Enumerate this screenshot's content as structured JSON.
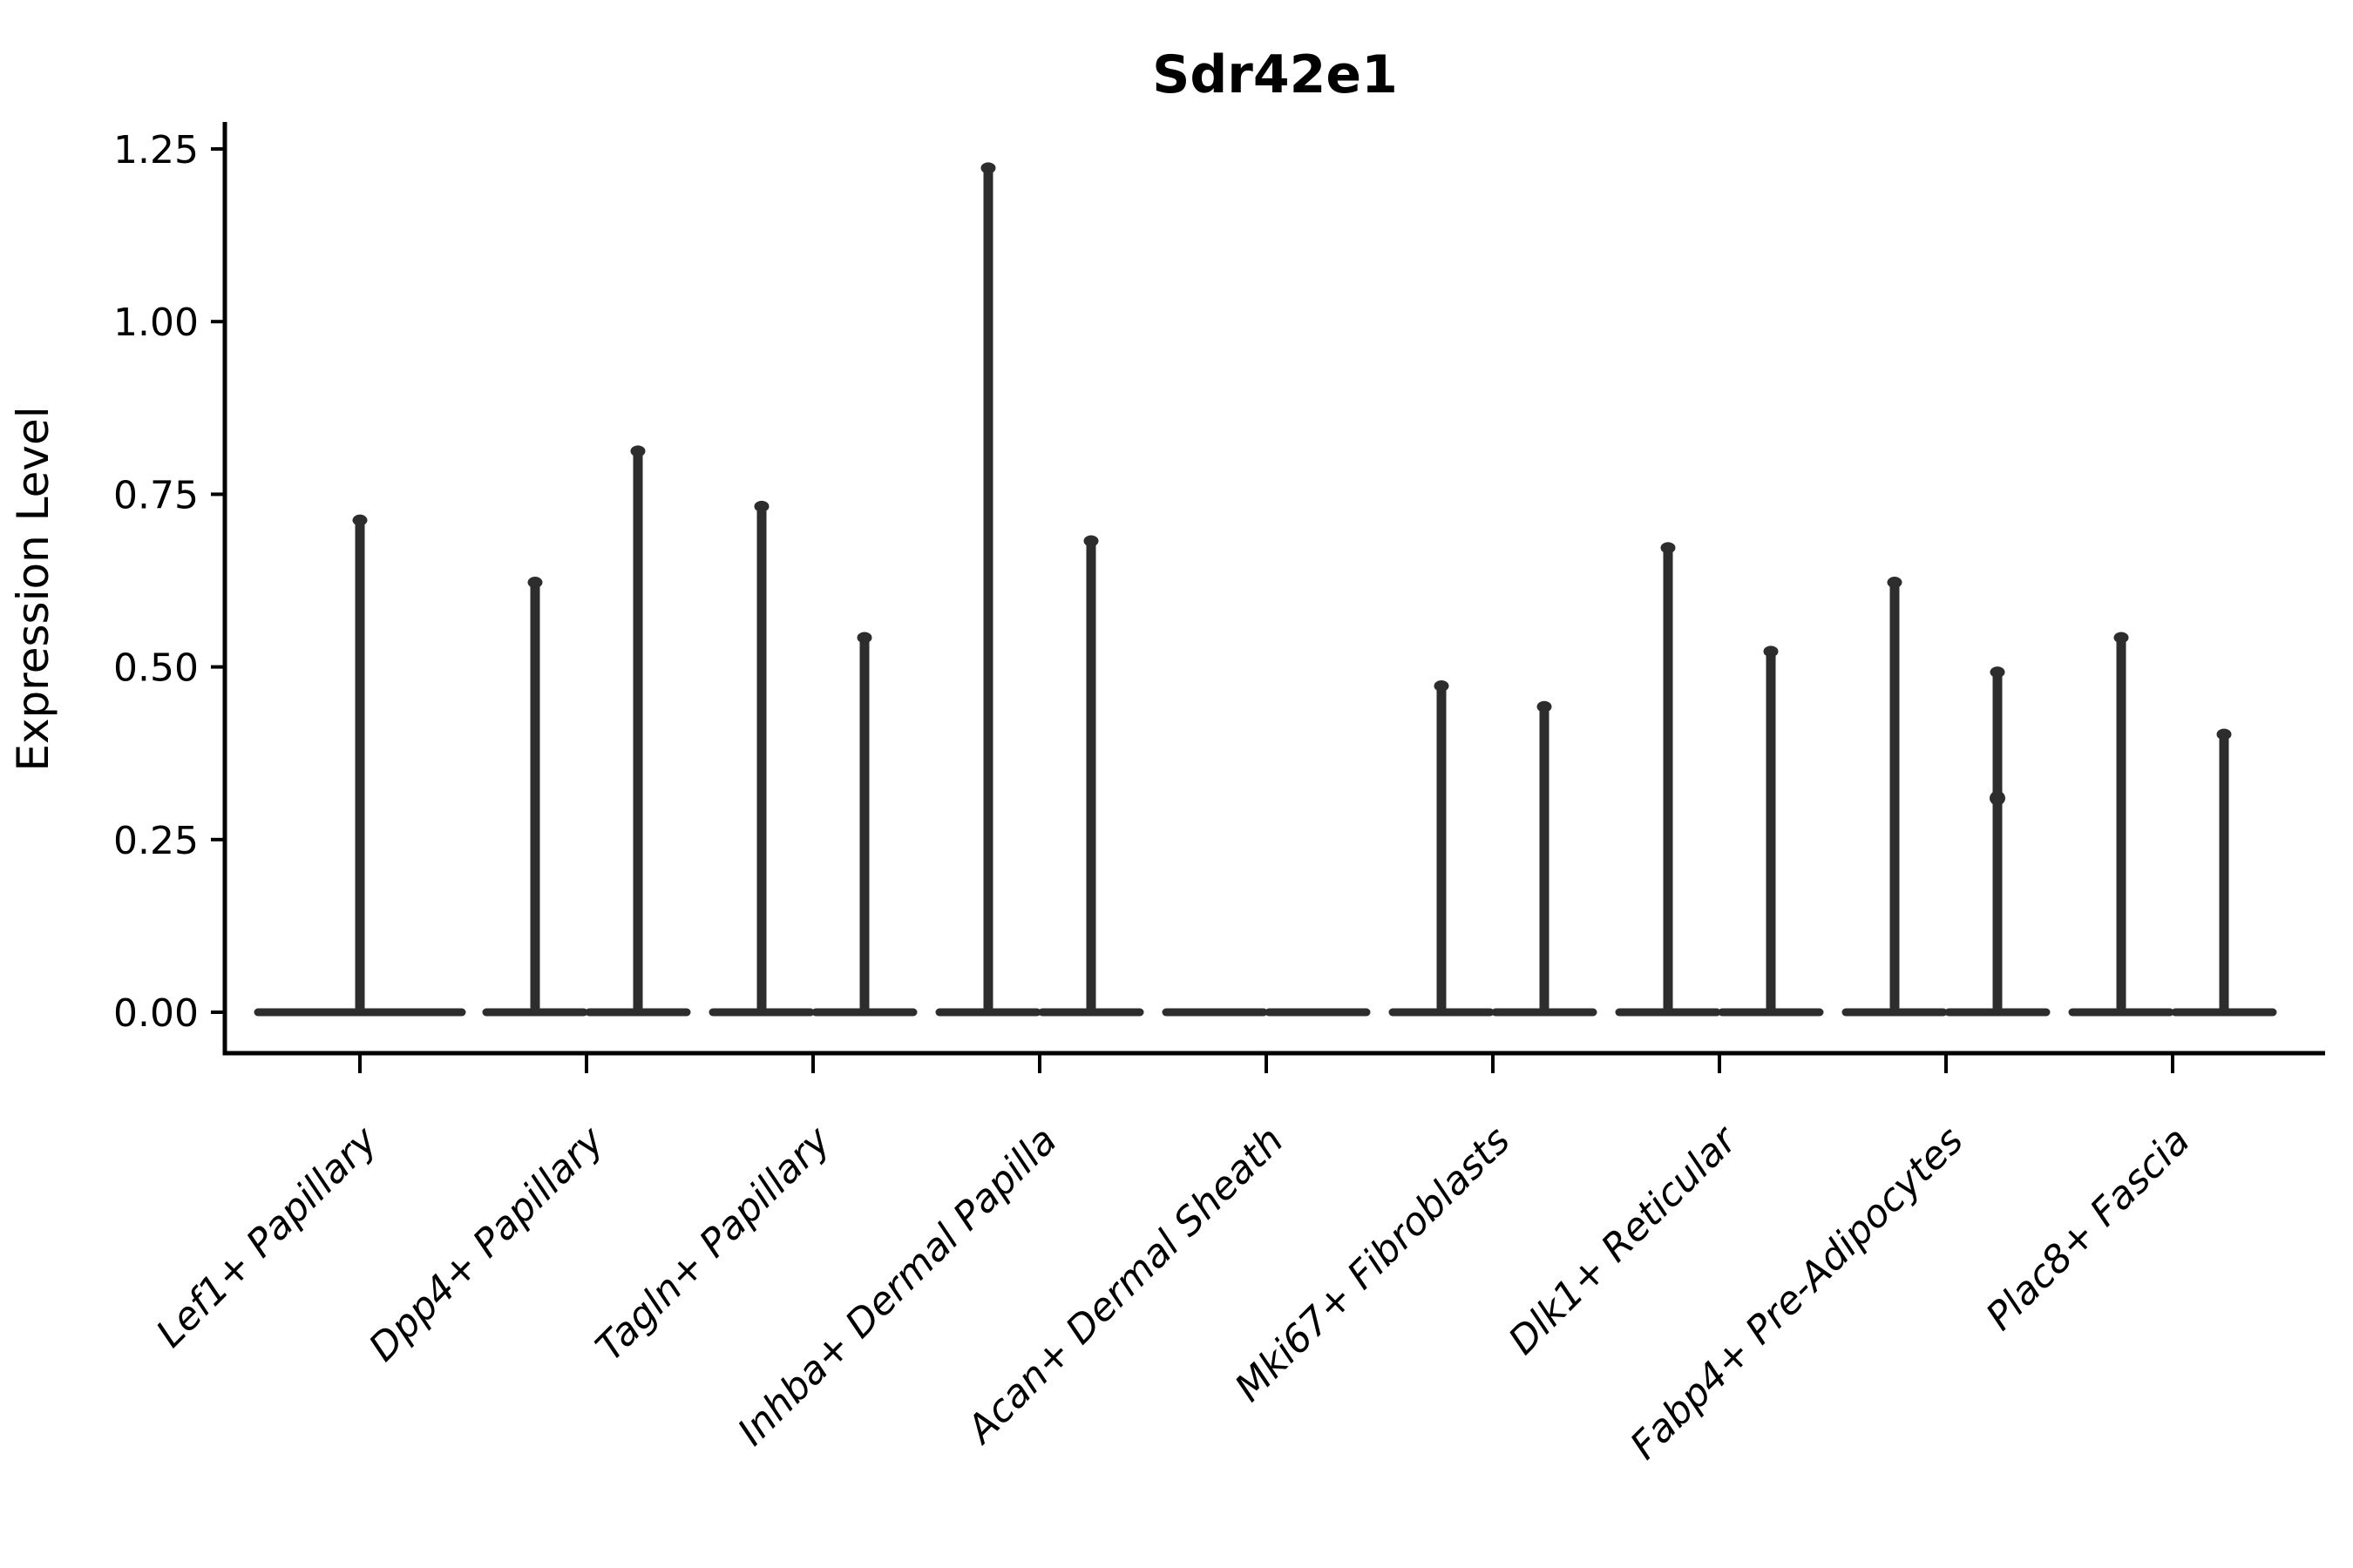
{
  "chart_data": {
    "type": "violin",
    "title": "Sdr42e1",
    "ylabel": "Expression Level",
    "xlabel": "",
    "grid": false,
    "legend_position": "none",
    "ylim": [
      -0.06,
      1.29
    ],
    "ytick_labels": [
      "0.00",
      "0.25",
      "0.50",
      "0.75",
      "1.00",
      "1.25"
    ],
    "ytick_values": [
      0.0,
      0.25,
      0.5,
      0.75,
      1.0,
      1.25
    ],
    "categories": [
      "Lef1+ Papillary",
      "Dpp4+ Papillary",
      "Tagln+ Papillary",
      "Inhba+ Dermal Papilla",
      "Acan+ Dermal Sheath",
      "Mki67+ Fibroblasts",
      "Dlk1+ Reticular",
      "Fabp4+ Pre-Adipocytes",
      "Plac8+ Fascia"
    ],
    "series": [
      {
        "category": "Lef1+ Papillary",
        "violin_max": [
          0.72
        ]
      },
      {
        "category": "Dpp4+ Papillary",
        "violin_max": [
          0.63,
          0.82
        ]
      },
      {
        "category": "Tagln+ Papillary",
        "violin_max": [
          0.74,
          0.55
        ]
      },
      {
        "category": "Inhba+ Dermal Papilla",
        "violin_max": [
          1.23,
          0.69
        ]
      },
      {
        "category": "Acan+ Dermal Sheath",
        "violin_max": [
          0.0,
          0.0
        ]
      },
      {
        "category": "Mki67+ Fibroblasts",
        "violin_max": [
          0.48,
          0.45
        ]
      },
      {
        "category": "Dlk1+ Reticular",
        "violin_max": [
          0.68,
          0.53
        ]
      },
      {
        "category": "Fabp4+ Pre-Adipocytes",
        "violin_max": [
          0.63,
          0.5
        ],
        "bump": {
          "violin": 1,
          "value": 0.31
        }
      },
      {
        "category": "Plac8+ Fascia",
        "violin_max": [
          0.55,
          0.41
        ]
      }
    ],
    "distribution_note": "Expression concentrated at 0 (wide flat violin base); thin spike rises to the maximum value per violin",
    "colors": {
      "violin": "#2d2d2d",
      "axis": "#000000",
      "text": "#000000",
      "background": "#ffffff"
    }
  }
}
